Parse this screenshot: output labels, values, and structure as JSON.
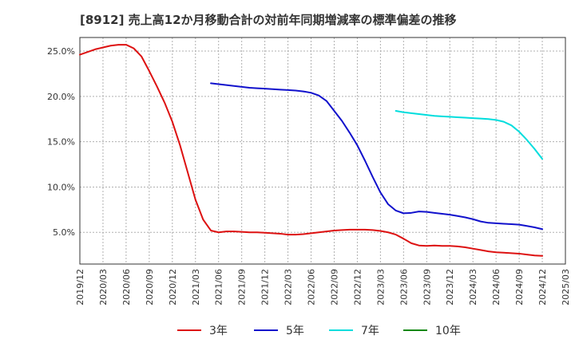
{
  "chart_data": {
    "type": "line",
    "title": "[8912]  売上高12か月移動合計の対前年同期増減率の標準偏差の推移",
    "xlabel": "",
    "ylabel": "",
    "ylim": [
      1.5,
      26.5
    ],
    "yticks": [
      {
        "value": 5,
        "label": "5.0%"
      },
      {
        "value": 10,
        "label": "10.0%"
      },
      {
        "value": 15,
        "label": "15.0%"
      },
      {
        "value": 20,
        "label": "20.0%"
      },
      {
        "value": 25,
        "label": "25.0%"
      }
    ],
    "xrange": [
      "2019-12",
      "2025-03"
    ],
    "xticks": [
      "2019/12",
      "2020/03",
      "2020/06",
      "2020/09",
      "2020/12",
      "2021/03",
      "2021/06",
      "2021/09",
      "2021/12",
      "2022/03",
      "2022/06",
      "2022/09",
      "2022/12",
      "2023/03",
      "2023/06",
      "2023/09",
      "2023/12",
      "2024/03",
      "2024/06",
      "2024/09",
      "2024/12",
      "2025/03"
    ],
    "grid": true,
    "legend_position": "bottom",
    "series": [
      {
        "name": "3年",
        "color": "#dd1111",
        "x": [
          "2019-12",
          "2020-01",
          "2020-02",
          "2020-03",
          "2020-04",
          "2020-05",
          "2020-06",
          "2020-07",
          "2020-08",
          "2020-09",
          "2020-10",
          "2020-11",
          "2020-12",
          "2021-01",
          "2021-02",
          "2021-03",
          "2021-04",
          "2021-05",
          "2021-06",
          "2021-07",
          "2021-08",
          "2021-09",
          "2021-10",
          "2021-11",
          "2021-12",
          "2022-01",
          "2022-02",
          "2022-03",
          "2022-04",
          "2022-05",
          "2022-06",
          "2022-07",
          "2022-08",
          "2022-09",
          "2022-10",
          "2022-11",
          "2022-12",
          "2023-01",
          "2023-02",
          "2023-03",
          "2023-04",
          "2023-05",
          "2023-06",
          "2023-07",
          "2023-08",
          "2023-09",
          "2023-10",
          "2023-11",
          "2023-12",
          "2024-01",
          "2024-02",
          "2024-03",
          "2024-04",
          "2024-05",
          "2024-06",
          "2024-07",
          "2024-08",
          "2024-09",
          "2024-10",
          "2024-11",
          "2024-12"
        ],
        "values": [
          24.6,
          24.9,
          25.2,
          25.4,
          25.6,
          25.7,
          25.7,
          25.3,
          24.4,
          22.8,
          21.1,
          19.3,
          17.2,
          14.6,
          11.6,
          8.6,
          6.4,
          5.2,
          5.0,
          5.1,
          5.1,
          5.05,
          5.0,
          5.0,
          4.95,
          4.9,
          4.85,
          4.75,
          4.75,
          4.8,
          4.9,
          5.0,
          5.1,
          5.2,
          5.25,
          5.3,
          5.3,
          5.3,
          5.25,
          5.15,
          5.0,
          4.75,
          4.3,
          3.8,
          3.55,
          3.5,
          3.55,
          3.5,
          3.5,
          3.45,
          3.35,
          3.2,
          3.05,
          2.9,
          2.8,
          2.75,
          2.7,
          2.65,
          2.55,
          2.45,
          2.4
        ]
      },
      {
        "name": "5年",
        "color": "#1111cc",
        "x": [
          "2021-05",
          "2021-06",
          "2021-07",
          "2021-08",
          "2021-09",
          "2021-10",
          "2021-11",
          "2021-12",
          "2022-01",
          "2022-02",
          "2022-03",
          "2022-04",
          "2022-05",
          "2022-06",
          "2022-07",
          "2022-08",
          "2022-09",
          "2022-10",
          "2022-11",
          "2022-12",
          "2023-01",
          "2023-02",
          "2023-03",
          "2023-04",
          "2023-05",
          "2023-06",
          "2023-07",
          "2023-08",
          "2023-09",
          "2023-10",
          "2023-11",
          "2023-12",
          "2024-01",
          "2024-02",
          "2024-03",
          "2024-04",
          "2024-05",
          "2024-06",
          "2024-07",
          "2024-08",
          "2024-09",
          "2024-10",
          "2024-11",
          "2024-12"
        ],
        "values": [
          21.45,
          21.35,
          21.25,
          21.15,
          21.05,
          20.95,
          20.9,
          20.85,
          20.8,
          20.75,
          20.7,
          20.65,
          20.55,
          20.4,
          20.1,
          19.5,
          18.4,
          17.3,
          16.0,
          14.6,
          12.9,
          11.1,
          9.4,
          8.1,
          7.4,
          7.1,
          7.15,
          7.3,
          7.25,
          7.15,
          7.05,
          6.95,
          6.8,
          6.65,
          6.45,
          6.2,
          6.05,
          6.0,
          5.95,
          5.9,
          5.85,
          5.7,
          5.55,
          5.35
        ]
      },
      {
        "name": "7年",
        "color": "#00dddd",
        "x": [
          "2023-05",
          "2023-06",
          "2023-07",
          "2023-08",
          "2023-09",
          "2023-10",
          "2023-11",
          "2023-12",
          "2024-01",
          "2024-02",
          "2024-03",
          "2024-04",
          "2024-05",
          "2024-06",
          "2024-07",
          "2024-08",
          "2024-09",
          "2024-10",
          "2024-11",
          "2024-12"
        ],
        "values": [
          18.4,
          18.25,
          18.15,
          18.05,
          17.95,
          17.85,
          17.8,
          17.75,
          17.7,
          17.65,
          17.6,
          17.55,
          17.5,
          17.4,
          17.2,
          16.8,
          16.1,
          15.2,
          14.2,
          13.1
        ]
      },
      {
        "name": "10年",
        "color": "#118811",
        "x": [],
        "values": []
      }
    ]
  }
}
